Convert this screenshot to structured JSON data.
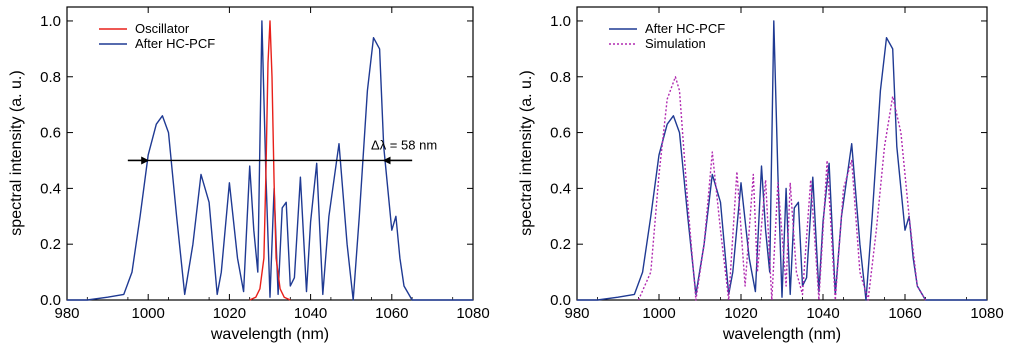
{
  "chart_data": [
    {
      "type": "line",
      "xlabel": "wavelength (nm)",
      "ylabel": "spectral intensity (a. u.)",
      "xlim": [
        980,
        1080
      ],
      "ylim": [
        0,
        1.05
      ],
      "xticks": [
        "980",
        "1000",
        "1020",
        "1040",
        "1060",
        "1080"
      ],
      "yticks": [
        "0.0",
        "0.2",
        "0.4",
        "0.6",
        "0.8",
        "1.0"
      ],
      "grid": false,
      "legend": "top-left",
      "colors": {
        "oscillator": "#e8201a",
        "after_hcpcf": "#1f3a93"
      },
      "annotation": {
        "text": "Δλ = 58 nm",
        "y": 0.5,
        "x_start": 1000,
        "x_end": 1058,
        "arrow_extent": [
          995,
          1065
        ]
      },
      "series": [
        {
          "name": "Oscillator",
          "color": "#e8201a",
          "style": "solid",
          "x": [
            1025.0,
            1026.5,
            1027.5,
            1028.5,
            1029.0,
            1029.5,
            1030.0,
            1030.5,
            1031.0,
            1031.5,
            1032.5,
            1033.5,
            1035.0
          ],
          "y": [
            0.0,
            0.01,
            0.04,
            0.15,
            0.45,
            0.85,
            1.0,
            0.8,
            0.42,
            0.15,
            0.04,
            0.01,
            0.0
          ]
        },
        {
          "name": "After HC-PCF",
          "color": "#1f3a93",
          "style": "solid",
          "x": [
            980,
            985,
            990,
            994,
            996,
            998,
            1000,
            1002,
            1003.5,
            1005,
            1007,
            1009,
            1011,
            1013,
            1015,
            1017,
            1018,
            1020,
            1022,
            1023.5,
            1025,
            1026,
            1027,
            1028,
            1029,
            1030,
            1031,
            1032,
            1033,
            1034,
            1035,
            1036,
            1037.5,
            1039,
            1040,
            1041.5,
            1043,
            1044.5,
            1047,
            1049,
            1050.5,
            1052,
            1054,
            1055.5,
            1057,
            1058,
            1060,
            1061,
            1062,
            1063,
            1065,
            1070,
            1075,
            1080
          ],
          "y": [
            0.0,
            0.0,
            0.01,
            0.02,
            0.1,
            0.3,
            0.52,
            0.63,
            0.66,
            0.6,
            0.3,
            0.02,
            0.2,
            0.45,
            0.35,
            0.02,
            0.1,
            0.42,
            0.15,
            0.03,
            0.48,
            0.25,
            0.1,
            1.0,
            0.45,
            0.01,
            0.4,
            0.02,
            0.33,
            0.35,
            0.05,
            0.08,
            0.44,
            0.03,
            0.28,
            0.49,
            0.02,
            0.3,
            0.56,
            0.2,
            0.0,
            0.3,
            0.75,
            0.94,
            0.9,
            0.55,
            0.25,
            0.3,
            0.15,
            0.05,
            0.0,
            0.0,
            0.0,
            0.0
          ]
        }
      ]
    },
    {
      "type": "line",
      "xlabel": "wavelength (nm)",
      "ylabel": "spectral intensity (a. u.)",
      "xlim": [
        980,
        1080
      ],
      "ylim": [
        0,
        1.05
      ],
      "xticks": [
        "980",
        "1000",
        "1020",
        "1040",
        "1060",
        "1080"
      ],
      "yticks": [
        "0.0",
        "0.2",
        "0.4",
        "0.6",
        "0.8",
        "1.0"
      ],
      "grid": false,
      "legend": "top-left",
      "colors": {
        "after_hcpcf": "#1f3a93",
        "simulation": "#b02ab0"
      },
      "series": [
        {
          "name": "After HC-PCF",
          "color": "#1f3a93",
          "style": "solid",
          "x": [
            980,
            985,
            990,
            994,
            996,
            998,
            1000,
            1002,
            1003.5,
            1005,
            1007,
            1009,
            1011,
            1013,
            1015,
            1017,
            1018,
            1020,
            1022,
            1023.5,
            1025,
            1026,
            1027,
            1028,
            1029,
            1030,
            1031,
            1032,
            1033,
            1034,
            1035,
            1036,
            1037.5,
            1039,
            1040,
            1041.5,
            1043,
            1044.5,
            1047,
            1049,
            1050.5,
            1052,
            1054,
            1055.5,
            1057,
            1058,
            1060,
            1061,
            1062,
            1063,
            1065,
            1070,
            1075,
            1080
          ],
          "y": [
            0.0,
            0.0,
            0.01,
            0.02,
            0.1,
            0.3,
            0.52,
            0.63,
            0.66,
            0.6,
            0.3,
            0.02,
            0.2,
            0.45,
            0.35,
            0.02,
            0.1,
            0.42,
            0.15,
            0.03,
            0.48,
            0.25,
            0.1,
            1.0,
            0.45,
            0.01,
            0.4,
            0.02,
            0.33,
            0.35,
            0.05,
            0.08,
            0.44,
            0.03,
            0.28,
            0.49,
            0.02,
            0.3,
            0.56,
            0.2,
            0.0,
            0.3,
            0.75,
            0.94,
            0.9,
            0.55,
            0.25,
            0.3,
            0.15,
            0.05,
            0.0,
            0.0,
            0.0,
            0.0
          ]
        },
        {
          "name": "Simulation",
          "color": "#b02ab0",
          "style": "dotted",
          "x": [
            995,
            998,
            1000,
            1002,
            1004,
            1005,
            1007,
            1009,
            1011,
            1013,
            1015,
            1017,
            1019,
            1021,
            1023,
            1024,
            1026,
            1027.5,
            1029,
            1031,
            1032,
            1033.5,
            1035,
            1037,
            1039,
            1041,
            1043,
            1045,
            1047,
            1049,
            1051,
            1053,
            1055,
            1057,
            1059,
            1061,
            1063,
            1065
          ],
          "y": [
            0.0,
            0.1,
            0.45,
            0.72,
            0.8,
            0.75,
            0.35,
            0.0,
            0.2,
            0.53,
            0.25,
            0.0,
            0.46,
            0.05,
            0.45,
            0.1,
            0.43,
            0.0,
            0.42,
            0.05,
            0.42,
            0.1,
            0.02,
            0.43,
            0.0,
            0.5,
            0.0,
            0.4,
            0.5,
            0.1,
            0.0,
            0.25,
            0.55,
            0.73,
            0.6,
            0.3,
            0.05,
            0.0
          ]
        }
      ]
    }
  ]
}
